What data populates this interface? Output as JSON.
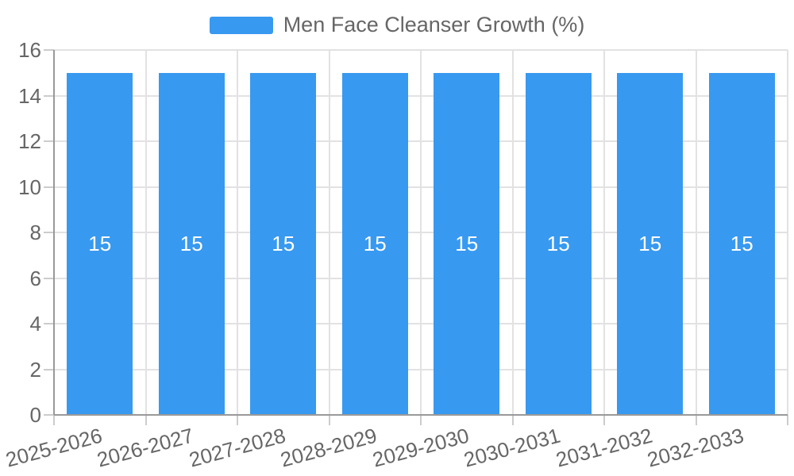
{
  "legend": {
    "label": "Men Face Cleanser Growth (%)",
    "swatch_color": "#3899F0"
  },
  "chart_data": {
    "type": "bar",
    "title": "Men Face Cleanser Growth (%)",
    "xlabel": "",
    "ylabel": "",
    "categories": [
      "2025-2026",
      "2026-2027",
      "2027-2028",
      "2028-2029",
      "2029-2030",
      "2030-2031",
      "2031-2032",
      "2032-2033"
    ],
    "series": [
      {
        "name": "Men Face Cleanser Growth (%)",
        "values": [
          15,
          15,
          15,
          15,
          15,
          15,
          15,
          15
        ]
      }
    ],
    "ylim": [
      0,
      16
    ],
    "yticks": [
      0,
      2,
      4,
      6,
      8,
      10,
      12,
      14,
      16
    ],
    "grid": true,
    "legend_position": "top-center",
    "bar_labels_visible": true,
    "x_label_rotation_deg": -15,
    "colors": {
      "bar": "#3899F0",
      "bar_label": "#ffffff",
      "grid": "#e2e2e2",
      "axis": "#999999",
      "tick": "#cccccc",
      "text": "#666666",
      "background": "#ffffff"
    }
  }
}
